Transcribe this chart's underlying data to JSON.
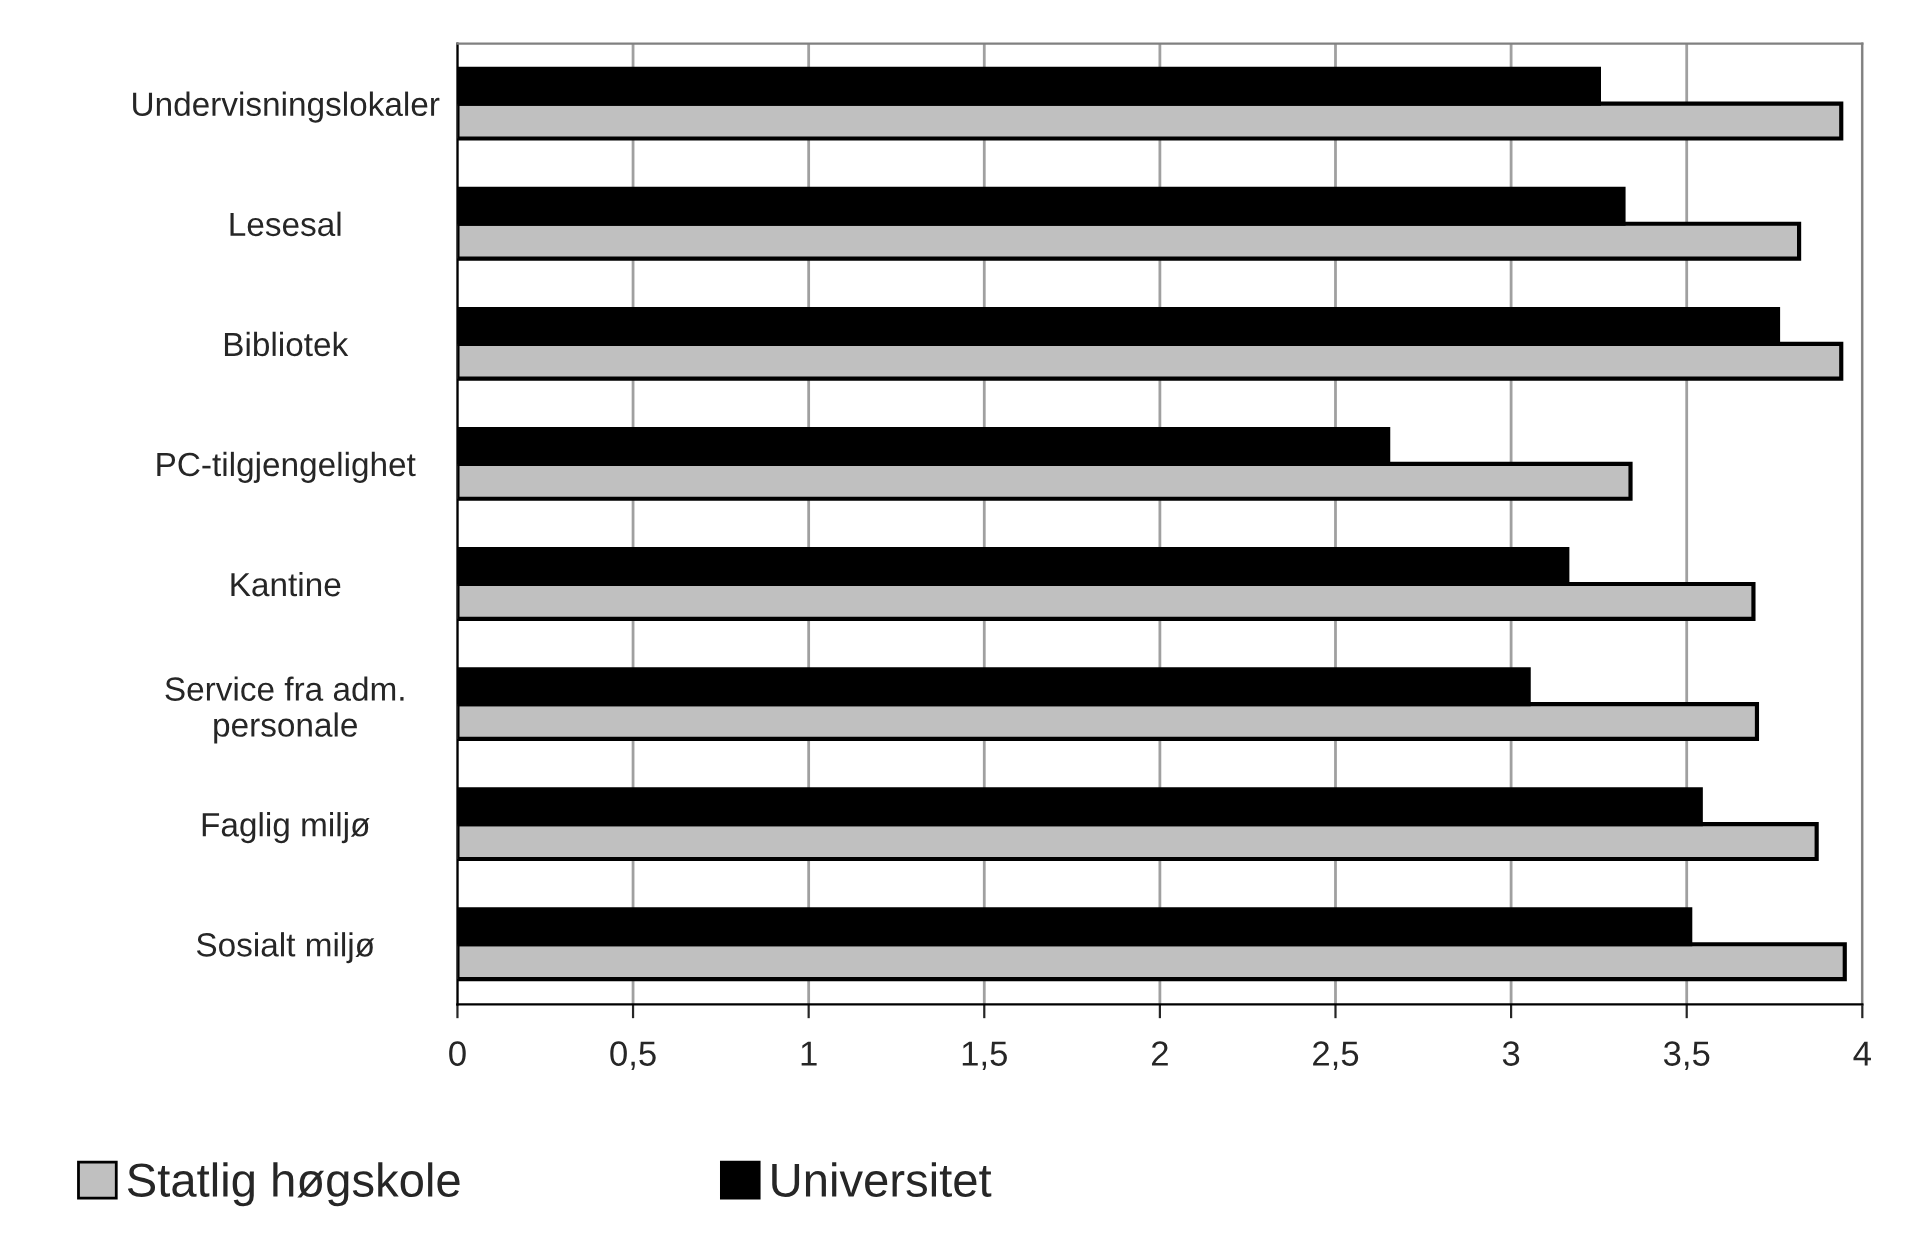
{
  "chart_data": {
    "type": "bar",
    "orientation": "horizontal",
    "categories": [
      "Undervisningslokaler",
      "Lesesal",
      "Bibliotek",
      "PC-tilgjengelighet",
      "Kantine",
      "Service fra adm.\npersonale",
      "Faglig miljø",
      "Sosialt miljø"
    ],
    "series": [
      {
        "name": "Statlig høgskole",
        "color": "#c0c0c0",
        "values": [
          3.94,
          3.82,
          3.94,
          3.34,
          3.69,
          3.7,
          3.87,
          3.95
        ]
      },
      {
        "name": "Universitet",
        "color": "#000000",
        "values": [
          3.25,
          3.32,
          3.76,
          2.65,
          3.16,
          3.05,
          3.54,
          3.51
        ]
      }
    ],
    "xlim": [
      0,
      4
    ],
    "xticks": [
      0,
      {
        "value": 0.5,
        "label": "0,5"
      },
      1,
      {
        "value": 1.5,
        "label": "1,5"
      },
      2,
      {
        "value": 2.5,
        "label": "2,5"
      },
      3,
      {
        "value": 3.5,
        "label": "3,5"
      },
      4
    ],
    "grid": "x",
    "legend": "bottom"
  }
}
